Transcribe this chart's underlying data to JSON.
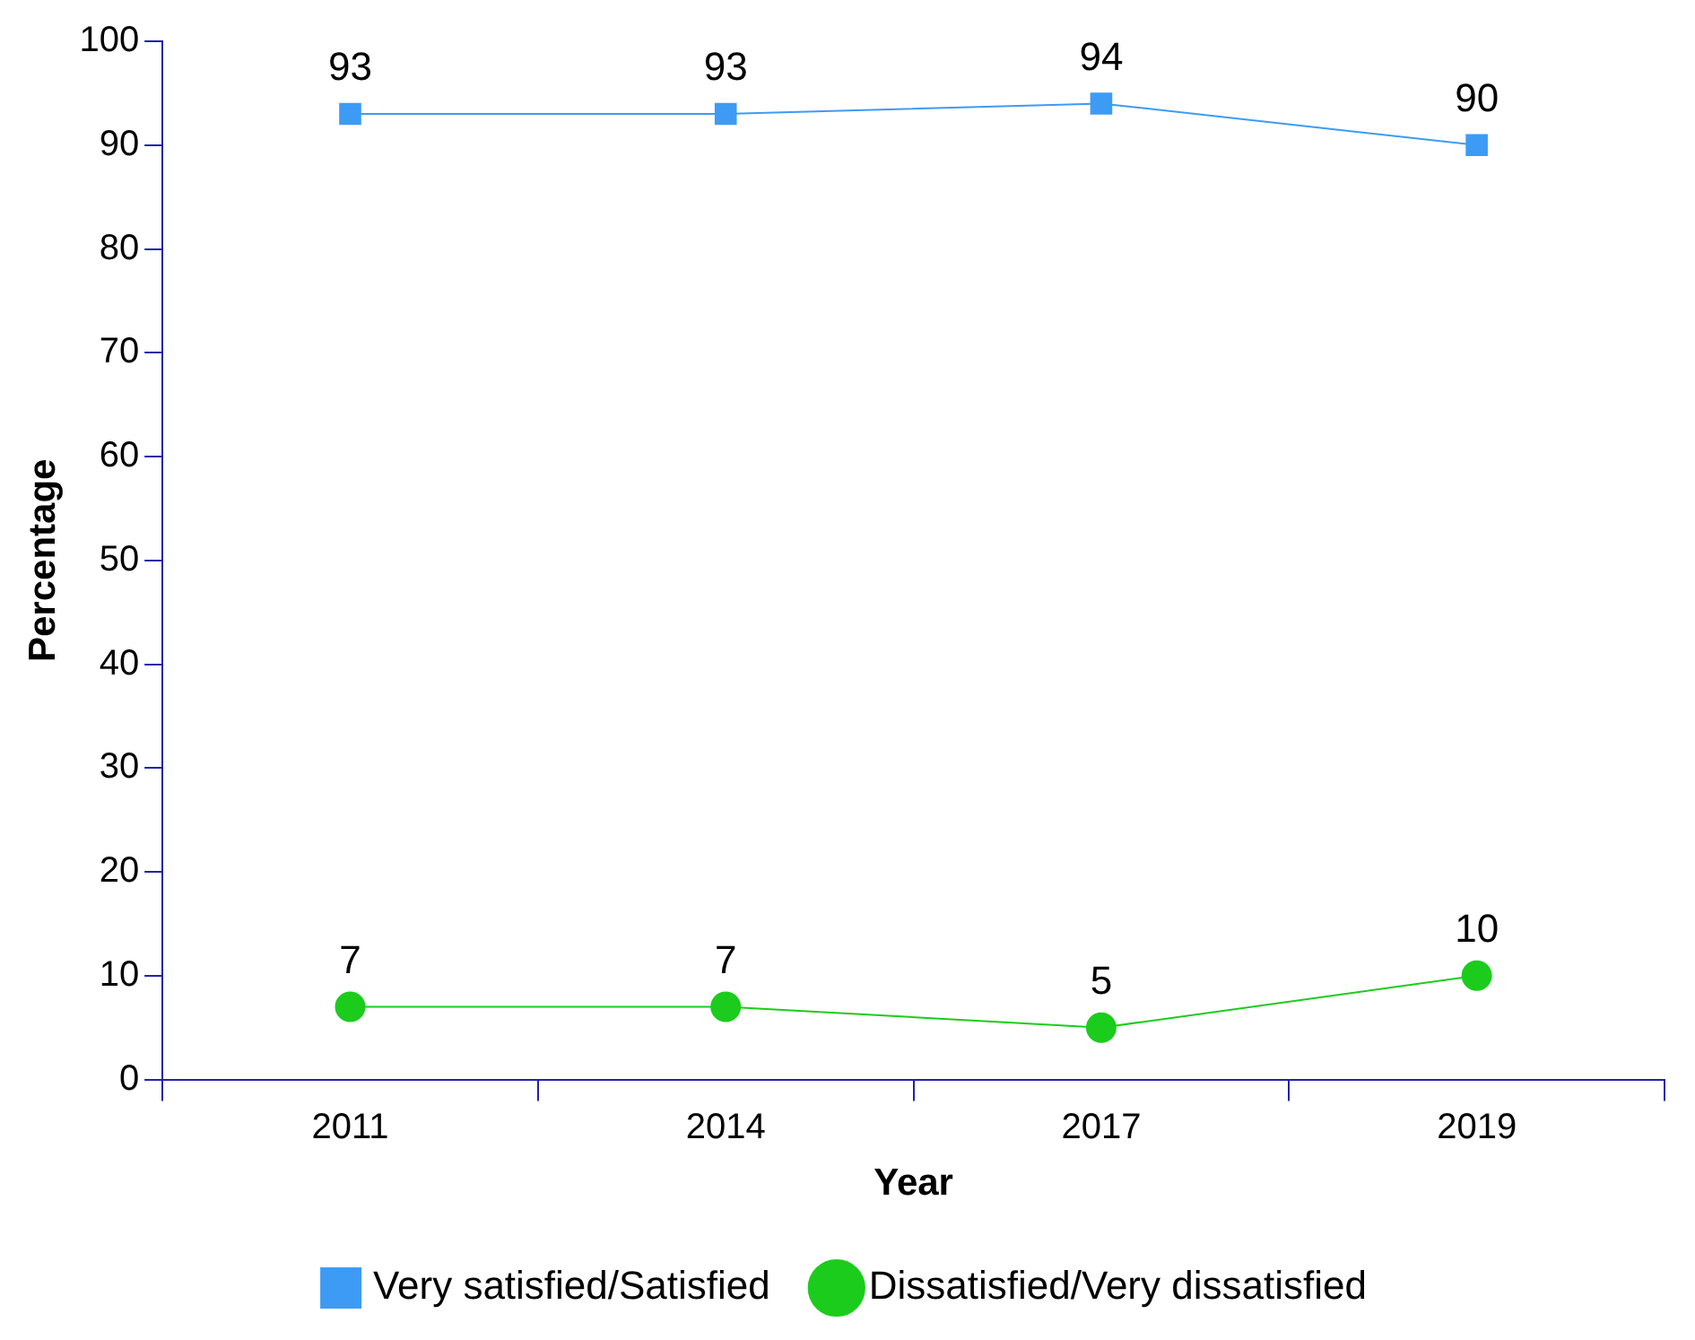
{
  "chart_data": {
    "type": "line",
    "xlabel": "Year",
    "ylabel": "Percentage",
    "categories": [
      "2011",
      "2014",
      "2017",
      "2019"
    ],
    "series": [
      {
        "name": "Very satisfied/Satisfied",
        "color": "#3d9bf5",
        "values": [
          93,
          93,
          94,
          90
        ],
        "marker": "square"
      },
      {
        "name": "Dissatisfied/Very dissatisfied",
        "color": "#1ccc1c",
        "values": [
          7,
          7,
          5,
          10
        ],
        "marker": "circle"
      }
    ],
    "ylim": [
      0,
      100
    ],
    "yticks": [
      0,
      10,
      20,
      30,
      40,
      50,
      60,
      70,
      80,
      90,
      100
    ],
    "grid": false,
    "legend": "bottom",
    "data_labels": true
  }
}
